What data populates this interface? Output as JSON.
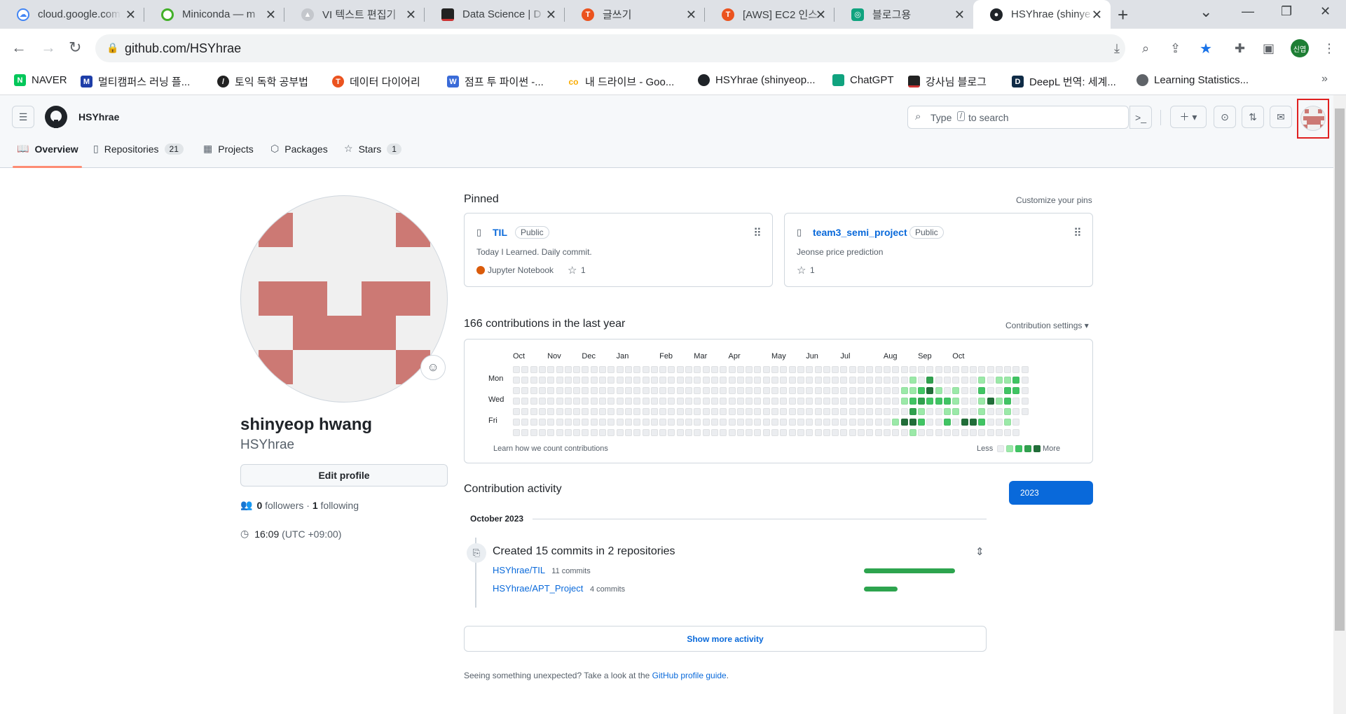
{
  "browser": {
    "tabs": [
      {
        "title": "cloud.google.com",
        "color": "#4285f4"
      },
      {
        "title": "Miniconda — m",
        "color": "#43b02a"
      },
      {
        "title": "VI 텍스트 편집기",
        "color": "#9aa0a6"
      },
      {
        "title": "Data Science | D",
        "color": "#222222"
      },
      {
        "title": "글쓰기",
        "color": "#eb531f"
      },
      {
        "title": "[AWS] EC2 인스",
        "color": "#eb531f"
      },
      {
        "title": "블로그용",
        "color": "#10a37f"
      },
      {
        "title": "HSYhrae (shinye",
        "color": "#1f2328"
      }
    ],
    "url": "github.com/HSYhrae",
    "profile_badge": "신엽",
    "bookmarks": [
      {
        "label": "NAVER",
        "icon": "N",
        "color": "#03c75a"
      },
      {
        "label": "멀티캠퍼스 러닝 플...",
        "icon": "M",
        "color": "#1e3ea8"
      },
      {
        "label": "토익 독학 공부법",
        "icon": "/",
        "color": "#222222"
      },
      {
        "label": "데이터 다이어리",
        "icon": "T",
        "color": "#eb531f"
      },
      {
        "label": "점프 투 파이썬 -...",
        "icon": "W",
        "color": "#3a6bd8"
      },
      {
        "label": "내 드라이브 - Goo...",
        "icon": "co",
        "color": "#f9ab00"
      },
      {
        "label": "HSYhrae (shinyeop...",
        "icon": "gh",
        "color": "#1f2328"
      },
      {
        "label": "ChatGPT",
        "icon": "ai",
        "color": "#10a37f"
      },
      {
        "label": "강사님 블로그",
        "icon": "",
        "color": "#222222"
      },
      {
        "label": "DeepL 번역: 세계...",
        "icon": "D",
        "color": "#0f2b46"
      },
      {
        "label": "Learning Statistics...",
        "icon": "gl",
        "color": "#5f6368"
      }
    ]
  },
  "header": {
    "username": "HSYhrae",
    "search_placeholder_pre": "Type",
    "search_key": "/",
    "search_placeholder_post": "to search"
  },
  "nav_tabs": [
    {
      "label": "Overview",
      "count": ""
    },
    {
      "label": "Repositories",
      "count": "21"
    },
    {
      "label": "Projects",
      "count": ""
    },
    {
      "label": "Packages",
      "count": ""
    },
    {
      "label": "Stars",
      "count": "1"
    }
  ],
  "profile": {
    "name": "shinyeop hwang",
    "login": "HSYhrae",
    "edit_label": "Edit profile",
    "followers": "0",
    "followers_label": "followers",
    "following": "1",
    "following_label": "following",
    "time": "16:09",
    "tz": "(UTC +09:00)"
  },
  "pinned": {
    "heading": "Pinned",
    "customize": "Customize your pins",
    "repos": [
      {
        "name": "TIL",
        "visibility": "Public",
        "desc": "Today I Learned. Daily commit.",
        "language": "Jupyter Notebook",
        "lang_color": "#da5b0b",
        "stars": "1"
      },
      {
        "name": "team3_semi_project",
        "visibility": "Public",
        "desc": "Jeonse price prediction",
        "language": "",
        "lang_color": "",
        "stars": "1"
      }
    ]
  },
  "contributions": {
    "heading": "166 contributions in the last year",
    "settings": "Contribution settings",
    "months": [
      "Oct",
      "Nov",
      "Dec",
      "Jan",
      "Feb",
      "Mar",
      "Apr",
      "May",
      "Jun",
      "Jul",
      "Aug",
      "Sep",
      "Oct"
    ],
    "days": [
      "Mon",
      "Wed",
      "Fri"
    ],
    "learn": "Learn how we count contributions",
    "less": "Less",
    "more": "More",
    "palette": [
      "#ebedf0",
      "#9be9a8",
      "#40c463",
      "#30a14e",
      "#216e39"
    ],
    "active_weeks": [
      [
        0,
        0,
        0,
        0,
        0,
        0,
        0
      ],
      [
        0,
        0,
        0,
        0,
        0,
        0,
        0
      ],
      [
        0,
        0,
        0,
        0,
        0,
        0,
        0
      ],
      [
        0,
        0,
        0,
        0,
        0,
        0,
        0
      ],
      [
        0,
        0,
        0,
        0,
        0,
        0,
        0
      ],
      [
        0,
        0,
        0,
        0,
        0,
        0,
        0
      ],
      [
        0,
        0,
        0,
        0,
        0,
        0,
        0
      ],
      [
        0,
        0,
        0,
        0,
        0,
        0,
        0
      ],
      [
        0,
        0,
        0,
        0,
        0,
        0,
        0
      ],
      [
        0,
        0,
        0,
        0,
        0,
        0,
        0
      ],
      [
        0,
        0,
        0,
        0,
        0,
        0,
        0
      ],
      [
        0,
        0,
        0,
        0,
        0,
        0,
        0
      ],
      [
        0,
        0,
        0,
        0,
        0,
        0,
        0
      ],
      [
        0,
        0,
        0,
        0,
        0,
        0,
        0
      ],
      [
        0,
        0,
        0,
        0,
        0,
        0,
        0
      ],
      [
        0,
        0,
        0,
        0,
        0,
        0,
        0
      ],
      [
        0,
        0,
        0,
        0,
        0,
        0,
        0
      ],
      [
        0,
        0,
        0,
        0,
        0,
        0,
        0
      ],
      [
        0,
        0,
        0,
        0,
        0,
        0,
        0
      ],
      [
        0,
        0,
        0,
        0,
        0,
        0,
        0
      ],
      [
        0,
        0,
        0,
        0,
        0,
        0,
        0
      ],
      [
        0,
        0,
        0,
        0,
        0,
        0,
        0
      ],
      [
        0,
        0,
        0,
        0,
        0,
        0,
        0
      ],
      [
        0,
        0,
        0,
        0,
        0,
        0,
        0
      ],
      [
        0,
        0,
        0,
        0,
        0,
        0,
        0
      ],
      [
        0,
        0,
        0,
        0,
        0,
        0,
        0
      ],
      [
        0,
        0,
        0,
        0,
        0,
        0,
        0
      ],
      [
        0,
        0,
        0,
        0,
        0,
        0,
        0
      ],
      [
        0,
        0,
        0,
        0,
        0,
        0,
        0
      ],
      [
        0,
        0,
        0,
        0,
        0,
        0,
        0
      ],
      [
        0,
        0,
        0,
        0,
        0,
        0,
        0
      ],
      [
        0,
        0,
        0,
        0,
        0,
        0,
        0
      ],
      [
        0,
        0,
        0,
        0,
        0,
        0,
        0
      ],
      [
        0,
        0,
        0,
        0,
        0,
        0,
        0
      ],
      [
        0,
        0,
        0,
        0,
        0,
        0,
        0
      ],
      [
        0,
        0,
        0,
        0,
        0,
        0,
        0
      ],
      [
        0,
        0,
        0,
        0,
        0,
        0,
        0
      ],
      [
        0,
        0,
        0,
        0,
        0,
        0,
        0
      ],
      [
        0,
        0,
        0,
        0,
        0,
        0,
        0
      ],
      [
        0,
        0,
        0,
        0,
        0,
        0,
        0
      ],
      [
        0,
        0,
        0,
        0,
        0,
        0,
        0
      ],
      [
        0,
        0,
        0,
        0,
        0,
        0,
        0
      ],
      [
        0,
        0,
        0,
        0,
        0,
        0,
        0
      ],
      [
        0,
        0,
        0,
        0,
        0,
        0,
        0
      ],
      [
        0,
        0,
        0,
        0,
        0,
        1,
        0
      ],
      [
        0,
        0,
        1,
        1,
        0,
        4,
        0
      ],
      [
        0,
        1,
        1,
        2,
        3,
        4,
        1
      ],
      [
        0,
        0,
        2,
        3,
        1,
        2,
        0
      ],
      [
        0,
        3,
        4,
        2,
        0,
        0,
        0
      ],
      [
        0,
        0,
        1,
        2,
        0,
        0,
        0
      ],
      [
        0,
        0,
        0,
        2,
        1,
        2,
        0
      ],
      [
        0,
        0,
        1,
        1,
        1,
        0,
        0
      ],
      [
        0,
        0,
        0,
        0,
        0,
        4,
        0
      ],
      [
        0,
        0,
        0,
        0,
        0,
        4,
        0
      ],
      [
        0,
        1,
        2,
        1,
        1,
        2,
        0
      ],
      [
        0,
        0,
        0,
        4,
        0,
        0,
        0
      ],
      [
        0,
        1,
        0,
        1,
        0,
        0,
        0
      ],
      [
        0,
        1,
        2,
        2,
        1,
        1,
        0
      ],
      [
        0,
        2,
        2,
        0,
        0,
        0,
        0
      ],
      [
        0,
        0,
        0,
        0,
        0,
        0,
        0
      ]
    ]
  },
  "activity": {
    "heading": "Contribution activity",
    "year": "2023",
    "period": "October 2023",
    "summary": "Created 15 commits in 2 repositories",
    "repos": [
      {
        "name": "HSYhrae/TIL",
        "commits": "11 commits",
        "share": 0.73
      },
      {
        "name": "HSYhrae/APT_Project",
        "commits": "4 commits",
        "share": 0.27
      }
    ],
    "show_more": "Show more activity",
    "footer_pre": "Seeing something unexpected? Take a look at the",
    "footer_link": "GitHub profile guide",
    "footer_post": "."
  }
}
